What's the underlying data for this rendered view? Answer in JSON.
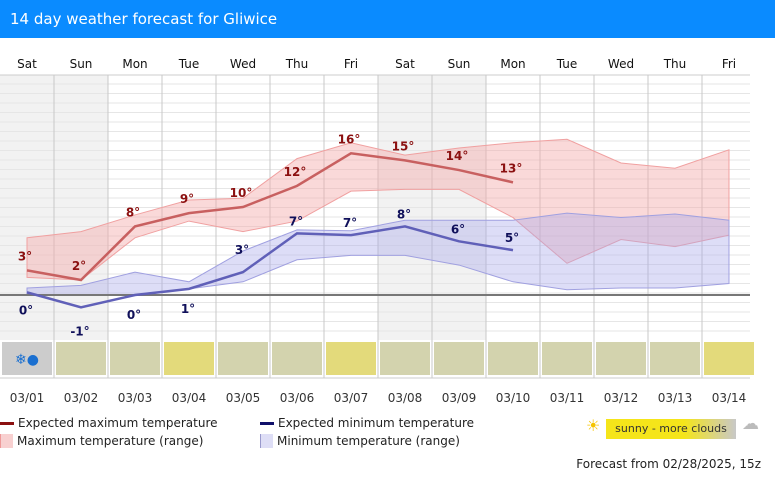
{
  "title": "14 day weather forecast for Gliwice",
  "days": [
    "Sat",
    "Sun",
    "Mon",
    "Tue",
    "Wed",
    "Thu",
    "Fri",
    "Sat",
    "Sun",
    "Mon",
    "Tue",
    "Wed",
    "Thu",
    "Fri"
  ],
  "dates": [
    "03/01",
    "03/02",
    "03/03",
    "03/04",
    "03/05",
    "03/06",
    "03/07",
    "03/08",
    "03/09",
    "03/10",
    "03/11",
    "03/12",
    "03/13",
    "03/14"
  ],
  "weekend": [
    0,
    1,
    7,
    8
  ],
  "max_labels": [
    "3°",
    "2°",
    "8°",
    "9°",
    "10°",
    "12°",
    "16°",
    "15°",
    "14°",
    "13°"
  ],
  "min_labels": [
    "0°",
    "-1°",
    "0°",
    "1°",
    "3°",
    "7°",
    "7°",
    "8°",
    "6°",
    "5°"
  ],
  "chart_data": {
    "type": "area",
    "unit": "°C",
    "max_line": [
      2.8,
      1.7,
      7.8,
      9.3,
      10.0,
      12.4,
      16.1,
      15.3,
      14.2,
      12.8
    ],
    "max_range_upper": [
      6.5,
      7.2,
      9.1,
      10.8,
      11.0,
      15.5,
      17.3,
      15.9,
      16.7,
      17.3,
      17.7,
      15.0,
      14.4,
      16.5
    ],
    "max_range_lower": [
      2.0,
      1.7,
      6.5,
      8.4,
      7.2,
      8.4,
      11.8,
      12.0,
      12.0,
      8.8,
      3.6,
      6.3,
      5.5,
      6.8
    ],
    "min_line": [
      0.3,
      -1.4,
      0,
      0.7,
      2.6,
      7.0,
      6.8,
      7.8,
      6.1,
      5.1
    ],
    "min_range_upper": [
      0.8,
      1.1,
      2.6,
      1.5,
      5.0,
      7.4,
      7.3,
      8.5,
      8.5,
      8.5,
      9.3,
      8.8,
      9.2,
      8.5
    ],
    "min_range_lower": [
      0,
      0,
      0,
      0.7,
      1.5,
      4.0,
      4.5,
      4.5,
      3.4,
      1.5,
      0.6,
      0.8,
      0.8,
      1.3
    ]
  },
  "weather": [
    "snow-rain",
    "cloudy",
    "cloudy",
    "sunny",
    "cloudy",
    "cloudy",
    "sunny",
    "cloudy",
    "cloudy",
    "cloudy",
    "cloudy",
    "cloudy",
    "cloudy",
    "sunny"
  ],
  "colors": {
    "cloudy": "#d3d3ae",
    "sunny": "#e3da7b",
    "snow-rain": "#cccccc",
    "max": "#c05050",
    "min": "#5050b0",
    "max_label": "#8b1010",
    "min_label": "#10105a"
  },
  "legend": {
    "exp_max": "Expected maximum temperature",
    "exp_min": "Expected minimum temperature",
    "max_range": "Maximum temperature (range)",
    "min_range": "Minimum temperature (range)",
    "scale": "sunny - more clouds"
  },
  "footer": "Forecast from 02/28/2025, 15z"
}
